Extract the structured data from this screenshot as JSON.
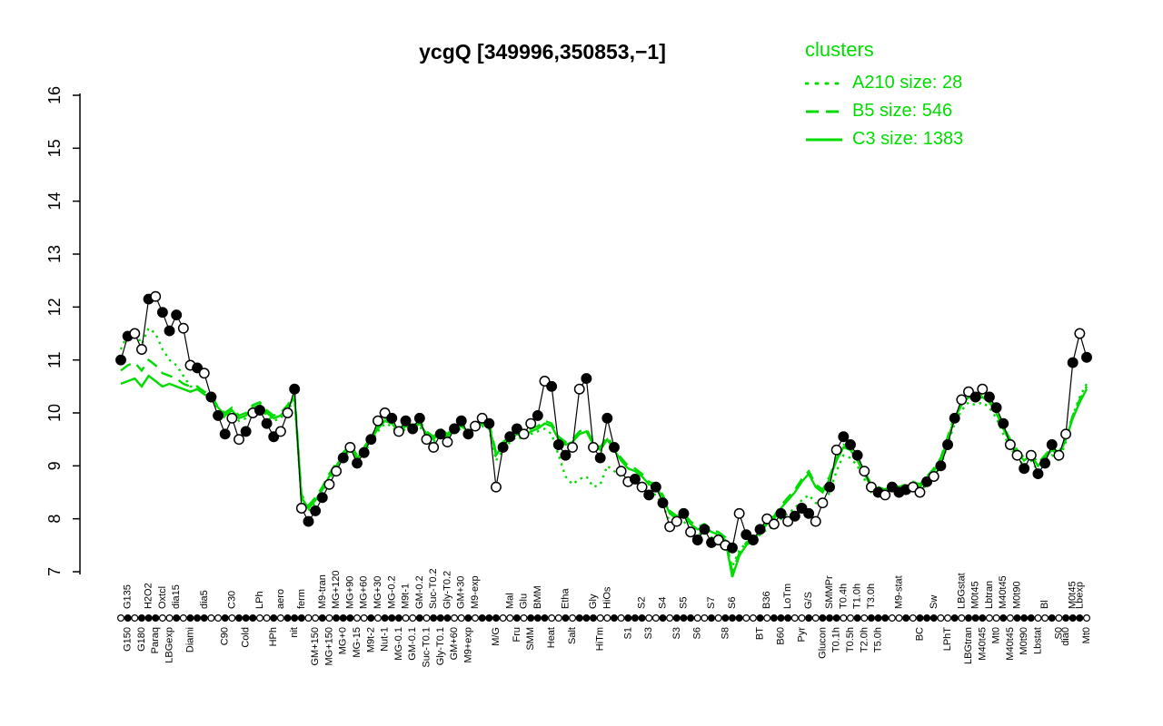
{
  "title": "ycgQ [349996,350853,−1]",
  "colors": {
    "cluster": "#00DC00",
    "gene": "#000000",
    "background": "#FFFFFF"
  },
  "legend": {
    "title": "clusters",
    "position": "top-right",
    "entries": [
      {
        "label": "A210 size: 28",
        "style": "dotted"
      },
      {
        "label": "B5 size: 546",
        "style": "dashed"
      },
      {
        "label": "C3 size: 1383",
        "style": "solid"
      }
    ]
  },
  "chart_data": {
    "type": "line",
    "title": "ycgQ [349996,350853,−1]",
    "xlabel": "",
    "ylabel": "",
    "ylim": [
      7,
      16
    ],
    "yticks": [
      7,
      8,
      9,
      10,
      11,
      12,
      13,
      14,
      15,
      16
    ],
    "grid": false,
    "marker_pattern": "ffoofof",
    "series": [
      {
        "name": "gene expression",
        "role": "gene",
        "marker": "circle",
        "color": "#000000",
        "values": [
          11.0,
          11.45,
          11.5,
          11.2,
          12.15,
          12.2,
          11.9,
          11.55,
          11.85,
          11.6,
          10.9,
          10.85,
          10.75,
          10.3,
          9.95,
          9.6,
          9.9,
          9.5,
          9.65,
          10.0,
          10.05,
          9.8,
          9.55,
          9.65,
          10.0,
          10.45,
          8.2,
          7.95,
          8.15,
          8.4,
          8.65,
          8.9,
          9.15,
          9.35,
          9.05,
          9.25,
          9.5,
          9.85,
          10.0,
          9.9,
          9.65,
          9.85,
          9.7,
          9.9,
          9.5,
          9.35,
          9.6,
          9.45,
          9.7,
          9.85,
          9.6,
          9.75,
          9.9,
          9.8,
          8.6,
          9.35,
          9.55,
          9.7,
          9.6,
          9.8,
          9.95,
          10.6,
          10.5,
          9.4,
          9.2,
          9.35,
          10.45,
          10.65,
          9.35,
          9.15,
          9.9,
          9.35,
          8.9,
          8.7,
          8.75,
          8.6,
          8.45,
          8.6,
          8.3,
          7.85,
          7.95,
          8.1,
          7.75,
          7.6,
          7.8,
          7.55,
          7.6,
          7.5,
          7.45,
          8.1,
          7.7,
          7.6,
          7.8,
          8.0,
          7.9,
          8.1,
          7.95,
          8.05,
          8.2,
          8.1,
          7.95,
          8.3,
          8.6,
          9.3,
          9.55,
          9.4,
          9.2,
          8.9,
          8.6,
          8.5,
          8.45,
          8.6,
          8.5,
          8.55,
          8.6,
          8.5,
          8.7,
          8.8,
          9.0,
          9.4,
          9.9,
          10.25,
          10.4,
          10.3,
          10.45,
          10.3,
          10.1,
          9.8,
          9.4,
          9.2,
          8.95,
          9.2,
          8.85,
          9.05,
          9.4,
          9.2,
          9.6,
          10.95,
          11.5,
          11.05
        ]
      },
      {
        "name": "A210",
        "role": "cluster",
        "style": "dotted",
        "color": "#00DC00",
        "values": [
          11.2,
          11.5,
          11.55,
          11.3,
          11.6,
          11.5,
          11.2,
          11.0,
          10.9,
          10.7,
          10.5,
          10.5,
          10.4,
          10.3,
          10.05,
          9.9,
          10.0,
          9.85,
          9.9,
          10.05,
          10.1,
          9.95,
          9.85,
          9.9,
          10.05,
          10.25,
          8.35,
          8.15,
          8.3,
          8.5,
          8.75,
          8.95,
          9.15,
          9.3,
          9.1,
          9.25,
          9.45,
          9.65,
          9.8,
          9.75,
          9.6,
          9.7,
          9.65,
          9.75,
          9.55,
          9.45,
          9.6,
          9.5,
          9.65,
          9.7,
          9.6,
          9.65,
          9.75,
          9.7,
          9.1,
          9.3,
          9.45,
          9.55,
          9.5,
          9.6,
          9.65,
          9.7,
          9.6,
          9.2,
          8.8,
          8.65,
          8.75,
          8.8,
          8.6,
          8.65,
          9.0,
          8.9,
          8.8,
          8.7,
          8.7,
          8.6,
          8.5,
          8.45,
          8.25,
          7.95,
          7.9,
          7.95,
          7.8,
          7.7,
          7.75,
          7.65,
          7.6,
          7.5,
          7.1,
          7.4,
          7.55,
          7.6,
          7.7,
          7.8,
          7.85,
          8.0,
          8.1,
          8.2,
          8.35,
          8.45,
          8.3,
          8.25,
          8.5,
          8.9,
          9.2,
          9.15,
          9.0,
          8.75,
          8.5,
          8.45,
          8.4,
          8.5,
          8.45,
          8.5,
          8.55,
          8.5,
          8.65,
          8.8,
          9.0,
          9.4,
          9.8,
          10.05,
          10.2,
          10.15,
          10.2,
          10.1,
          9.9,
          9.6,
          9.35,
          9.15,
          9.0,
          9.1,
          8.9,
          9.05,
          9.2,
          9.1,
          9.45,
          9.95,
          10.3,
          10.55
        ]
      },
      {
        "name": "B5",
        "role": "cluster",
        "style": "dashed",
        "color": "#00DC00",
        "values": [
          10.8,
          10.9,
          10.95,
          10.8,
          11.0,
          10.9,
          10.75,
          10.7,
          10.65,
          10.55,
          10.5,
          10.5,
          10.4,
          10.35,
          10.1,
          10.0,
          10.1,
          9.95,
          10.0,
          10.15,
          10.2,
          10.05,
          9.95,
          10.0,
          10.15,
          10.35,
          8.45,
          8.25,
          8.4,
          8.6,
          8.85,
          9.05,
          9.25,
          9.4,
          9.2,
          9.35,
          9.55,
          9.75,
          9.9,
          9.85,
          9.7,
          9.8,
          9.75,
          9.85,
          9.65,
          9.55,
          9.7,
          9.6,
          9.75,
          9.8,
          9.7,
          9.75,
          9.85,
          9.8,
          9.25,
          9.45,
          9.55,
          9.65,
          9.6,
          9.7,
          9.75,
          9.85,
          9.8,
          9.55,
          9.45,
          9.5,
          9.65,
          9.7,
          9.45,
          9.35,
          9.55,
          9.35,
          9.15,
          9.0,
          8.95,
          8.85,
          8.7,
          8.65,
          8.45,
          8.15,
          8.05,
          8.1,
          7.95,
          7.85,
          7.9,
          7.8,
          7.75,
          7.65,
          7.0,
          7.35,
          7.55,
          7.65,
          7.8,
          7.95,
          8.05,
          8.25,
          8.4,
          8.55,
          8.75,
          8.9,
          8.65,
          8.55,
          8.8,
          9.15,
          9.4,
          9.35,
          9.15,
          8.9,
          8.65,
          8.6,
          8.55,
          8.65,
          8.6,
          8.65,
          8.7,
          8.65,
          8.8,
          8.95,
          9.15,
          9.55,
          9.95,
          10.2,
          10.35,
          10.3,
          10.35,
          10.25,
          10.05,
          9.75,
          9.5,
          9.3,
          9.15,
          9.25,
          9.05,
          9.2,
          9.35,
          9.25,
          9.55,
          9.95,
          10.25,
          10.5
        ]
      },
      {
        "name": "C3",
        "role": "cluster",
        "style": "solid",
        "color": "#00DC00",
        "values": [
          10.55,
          10.6,
          10.65,
          10.5,
          10.7,
          10.6,
          10.5,
          10.55,
          10.5,
          10.45,
          10.4,
          10.45,
          10.35,
          10.3,
          10.1,
          9.95,
          10.05,
          9.9,
          9.95,
          10.1,
          10.15,
          10.0,
          9.9,
          9.95,
          10.1,
          10.3,
          8.4,
          8.2,
          8.35,
          8.55,
          8.8,
          9.0,
          9.2,
          9.35,
          9.15,
          9.3,
          9.5,
          9.7,
          9.85,
          9.8,
          9.65,
          9.75,
          9.7,
          9.8,
          9.6,
          9.5,
          9.65,
          9.55,
          9.7,
          9.75,
          9.65,
          9.7,
          9.8,
          9.75,
          9.2,
          9.4,
          9.5,
          9.6,
          9.55,
          9.65,
          9.7,
          9.8,
          9.75,
          9.5,
          9.4,
          9.45,
          9.6,
          9.65,
          9.4,
          9.3,
          9.5,
          9.3,
          9.1,
          8.95,
          8.9,
          8.8,
          8.65,
          8.6,
          8.4,
          8.1,
          8.0,
          8.05,
          7.9,
          7.8,
          7.85,
          7.75,
          7.7,
          7.6,
          6.9,
          7.3,
          7.5,
          7.6,
          7.75,
          7.9,
          8.0,
          8.2,
          8.35,
          8.5,
          8.7,
          8.85,
          8.6,
          8.5,
          8.75,
          9.1,
          9.35,
          9.3,
          9.1,
          8.85,
          8.6,
          8.55,
          8.5,
          8.6,
          8.55,
          8.6,
          8.65,
          8.6,
          8.75,
          8.9,
          9.1,
          9.5,
          9.9,
          10.15,
          10.3,
          10.25,
          10.3,
          10.2,
          10.0,
          9.7,
          9.45,
          9.25,
          9.1,
          9.2,
          9.0,
          9.15,
          9.3,
          9.2,
          9.5,
          9.9,
          10.2,
          10.45
        ]
      }
    ],
    "xlabels_top": [
      {
        "i": 1,
        "t": "G135"
      },
      {
        "i": 4,
        "t": "H2O2"
      },
      {
        "i": 6,
        "t": "Oxtcl"
      },
      {
        "i": 8,
        "t": "dia15"
      },
      {
        "i": 12,
        "t": "dia5"
      },
      {
        "i": 16,
        "t": "C30"
      },
      {
        "i": 20,
        "t": "LPh"
      },
      {
        "i": 23,
        "t": "aero"
      },
      {
        "i": 26,
        "t": "ferm"
      },
      {
        "i": 29,
        "t": "M9-tran"
      },
      {
        "i": 31,
        "t": "MG+120"
      },
      {
        "i": 33,
        "t": "MG+90"
      },
      {
        "i": 35,
        "t": "MG+60"
      },
      {
        "i": 37,
        "t": "MG+30"
      },
      {
        "i": 39,
        "t": "MG-0.2"
      },
      {
        "i": 41,
        "t": "M9t-1"
      },
      {
        "i": 43,
        "t": "GM-0.2"
      },
      {
        "i": 45,
        "t": "Suc-T0.2"
      },
      {
        "i": 47,
        "t": "Gly-T0.2"
      },
      {
        "i": 49,
        "t": "GM+30"
      },
      {
        "i": 51,
        "t": "M9-exp"
      },
      {
        "i": 56,
        "t": "Mal"
      },
      {
        "i": 58,
        "t": "Glu"
      },
      {
        "i": 60,
        "t": "BMM"
      },
      {
        "i": 64,
        "t": "Etha"
      },
      {
        "i": 68,
        "t": "Gly"
      },
      {
        "i": 70,
        "t": "HiOs"
      },
      {
        "i": 75,
        "t": "S2"
      },
      {
        "i": 78,
        "t": "S4"
      },
      {
        "i": 81,
        "t": "S5"
      },
      {
        "i": 85,
        "t": "S7"
      },
      {
        "i": 88,
        "t": "S6"
      },
      {
        "i": 93,
        "t": "B36"
      },
      {
        "i": 96,
        "t": "LoTm"
      },
      {
        "i": 99,
        "t": "G/S"
      },
      {
        "i": 102,
        "t": "SMMPr"
      },
      {
        "i": 104,
        "t": "T0.4h"
      },
      {
        "i": 106,
        "t": "T1.0h"
      },
      {
        "i": 108,
        "t": "T3.0h"
      },
      {
        "i": 112,
        "t": "M9-stat"
      },
      {
        "i": 117,
        "t": "Sw"
      },
      {
        "i": 121,
        "t": "LBGstat"
      },
      {
        "i": 123,
        "t": "M0t45"
      },
      {
        "i": 125,
        "t": "Lbtran"
      },
      {
        "i": 127,
        "t": "M40t45"
      },
      {
        "i": 129,
        "t": "M0t90"
      },
      {
        "i": 133,
        "t": "Bl"
      },
      {
        "i": 137,
        "t": "M0t45"
      },
      {
        "i": 138,
        "t": "Lbexp"
      }
    ],
    "xlabels_bottom": [
      {
        "i": 1,
        "t": "G150"
      },
      {
        "i": 3,
        "t": "G180"
      },
      {
        "i": 5,
        "t": "Paraq"
      },
      {
        "i": 7,
        "t": "LBGexp"
      },
      {
        "i": 10,
        "t": "Diami"
      },
      {
        "i": 15,
        "t": "C90"
      },
      {
        "i": 18,
        "t": "Cold"
      },
      {
        "i": 22,
        "t": "HPh"
      },
      {
        "i": 25,
        "t": "nit"
      },
      {
        "i": 28,
        "t": "GM+150"
      },
      {
        "i": 30,
        "t": "MG+150"
      },
      {
        "i": 32,
        "t": "MG+0"
      },
      {
        "i": 34,
        "t": "MG-15"
      },
      {
        "i": 36,
        "t": "M9t-2"
      },
      {
        "i": 38,
        "t": "Nut-1"
      },
      {
        "i": 40,
        "t": "MG-0.1"
      },
      {
        "i": 42,
        "t": "GM-0.1"
      },
      {
        "i": 44,
        "t": "Suc-T0.1"
      },
      {
        "i": 46,
        "t": "Gly-T0.1"
      },
      {
        "i": 48,
        "t": "GM+60"
      },
      {
        "i": 50,
        "t": "M9+exp"
      },
      {
        "i": 54,
        "t": "M/G"
      },
      {
        "i": 57,
        "t": "Fru"
      },
      {
        "i": 59,
        "t": "SMM"
      },
      {
        "i": 62,
        "t": "Heat"
      },
      {
        "i": 65,
        "t": "Salt"
      },
      {
        "i": 69,
        "t": "HiTm"
      },
      {
        "i": 73,
        "t": "S1"
      },
      {
        "i": 76,
        "t": "S3"
      },
      {
        "i": 80,
        "t": "S3"
      },
      {
        "i": 83,
        "t": "S6"
      },
      {
        "i": 87,
        "t": "S8"
      },
      {
        "i": 92,
        "t": "BT"
      },
      {
        "i": 95,
        "t": "B60"
      },
      {
        "i": 98,
        "t": "Pyr"
      },
      {
        "i": 101,
        "t": "Glucon"
      },
      {
        "i": 103,
        "t": "T0.1h"
      },
      {
        "i": 105,
        "t": "T0.5h"
      },
      {
        "i": 107,
        "t": "T2.0h"
      },
      {
        "i": 109,
        "t": "T5.0h"
      },
      {
        "i": 115,
        "t": "BC"
      },
      {
        "i": 119,
        "t": "LPhT"
      },
      {
        "i": 122,
        "t": "LBGtran"
      },
      {
        "i": 124,
        "t": "M40t45"
      },
      {
        "i": 126,
        "t": "Mt0"
      },
      {
        "i": 128,
        "t": "M40t45"
      },
      {
        "i": 130,
        "t": "M0t90"
      },
      {
        "i": 132,
        "t": "Lbstat"
      },
      {
        "i": 135,
        "t": "S0"
      },
      {
        "i": 136,
        "t": "dia0"
      },
      {
        "i": 139,
        "t": "Mt0"
      }
    ]
  }
}
